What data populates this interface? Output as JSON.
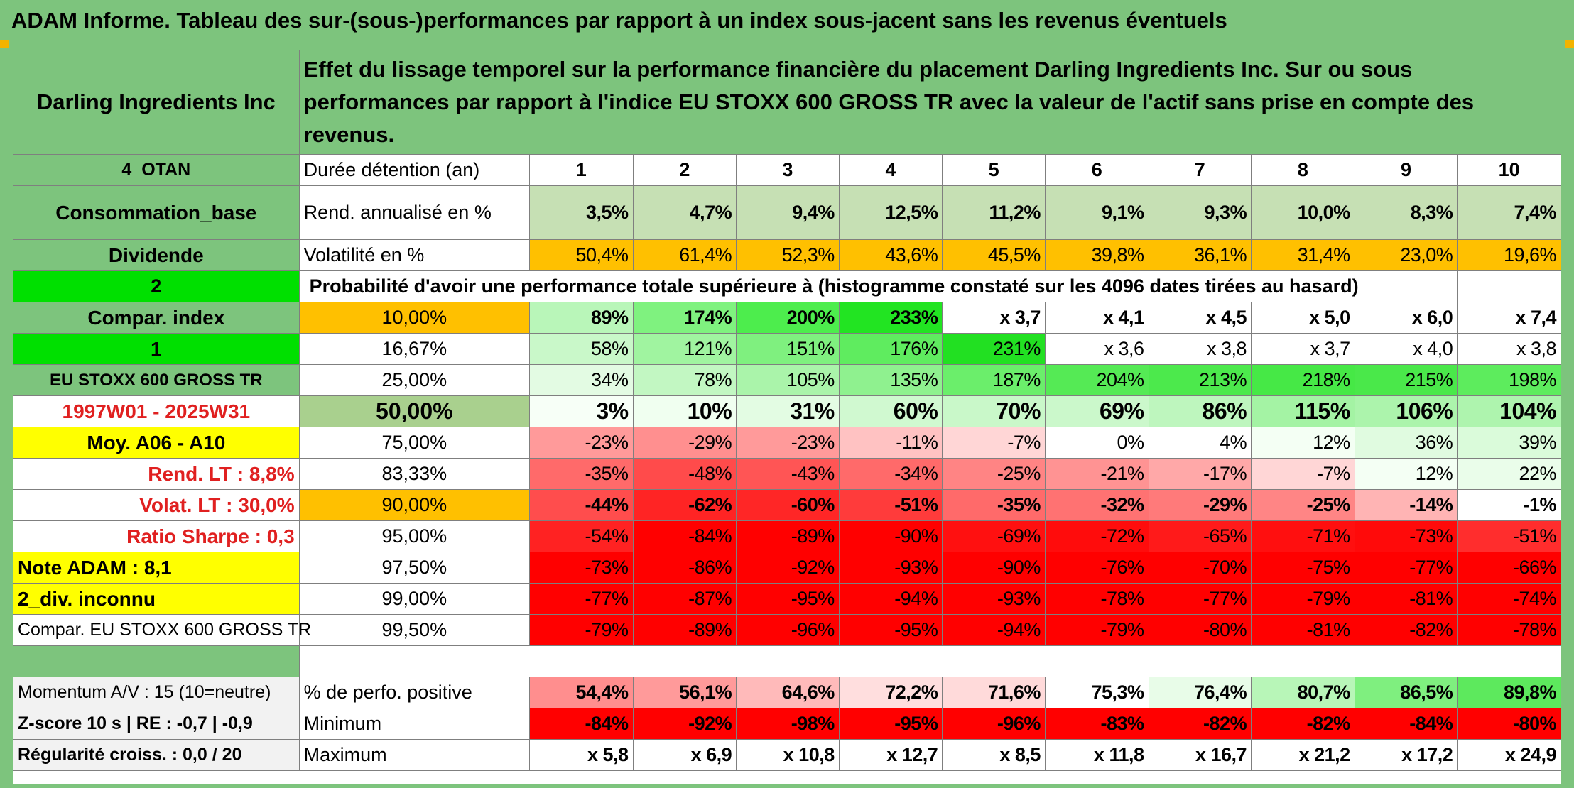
{
  "title": "ADAM Informe. Tableau des sur-(sous-)performances par rapport à un index sous-jacent sans les revenus éventuels",
  "company": "Darling Ingredients Inc",
  "description": "Effet du lissage temporel sur la performance financière du placement Darling Ingredients Inc. Sur ou sous performances par rapport à l'indice EU STOXX 600 GROSS TR avec la valeur de l'actif sans prise en compte des revenus.",
  "left_labels": {
    "l0": "4_OTAN",
    "l1": "Consommation_base",
    "l2": "Dividende",
    "l3": "2",
    "l4": "Compar. index",
    "l5": "1",
    "l6": "EU STOXX 600 GROSS TR",
    "l7": "1997W01 - 2025W31",
    "l8": "Moy. A06 - A10",
    "l9": "Rend. LT :   8,8%",
    "l10": "Volat. LT :   30,0%",
    "l11": "Ratio Sharpe :    0,3",
    "l12": "Note ADAM : 8,1",
    "l13": "2_div. inconnu",
    "l14": "Compar. EU STOXX 600 GROSS TR",
    "l15": "Momentum A/V : 15 (10=neutre)",
    "l16": "Z-score 10 s | RE : -0,7 | -0,9",
    "l17": "Régularité croiss. : 0,0 / 20"
  },
  "row_labels": {
    "holding": "Durée détention (an)",
    "rend": "Rend. annualisé en %",
    "vol": "Volatilité en %",
    "prob": "Probabilité d'avoir une performance totale supérieure à (histogramme constaté sur les 4096 dates tirées au hasard)",
    "pos": "% de perfo. positive",
    "min": "Minimum",
    "max": "Maximum"
  },
  "years": [
    "1",
    "2",
    "3",
    "4",
    "5",
    "6",
    "7",
    "8",
    "9",
    "10"
  ],
  "rend": [
    "3,5%",
    "4,7%",
    "9,4%",
    "12,5%",
    "11,2%",
    "9,1%",
    "9,3%",
    "10,0%",
    "8,3%",
    "7,4%"
  ],
  "vol": [
    "50,4%",
    "61,4%",
    "52,3%",
    "43,6%",
    "45,5%",
    "39,8%",
    "36,1%",
    "31,4%",
    "23,0%",
    "19,6%"
  ],
  "percentiles": [
    "10,00%",
    "16,67%",
    "25,00%",
    "50,00%",
    "75,00%",
    "83,33%",
    "90,00%",
    "95,00%",
    "97,50%",
    "99,00%",
    "99,50%"
  ],
  "perf": [
    [
      "89%",
      "174%",
      "200%",
      "233%",
      "x 3,7",
      "x 4,1",
      "x 4,5",
      "x 5,0",
      "x 6,0",
      "x 7,4"
    ],
    [
      "58%",
      "121%",
      "151%",
      "176%",
      "231%",
      "x 3,6",
      "x 3,8",
      "x 3,7",
      "x 4,0",
      "x 3,8"
    ],
    [
      "34%",
      "78%",
      "105%",
      "135%",
      "187%",
      "204%",
      "213%",
      "218%",
      "215%",
      "198%"
    ],
    [
      "3%",
      "10%",
      "31%",
      "60%",
      "70%",
      "69%",
      "86%",
      "115%",
      "106%",
      "104%"
    ],
    [
      "-23%",
      "-29%",
      "-23%",
      "-11%",
      "-7%",
      "0%",
      "4%",
      "12%",
      "36%",
      "39%"
    ],
    [
      "-35%",
      "-48%",
      "-43%",
      "-34%",
      "-25%",
      "-21%",
      "-17%",
      "-7%",
      "12%",
      "22%"
    ],
    [
      "-44%",
      "-62%",
      "-60%",
      "-51%",
      "-35%",
      "-32%",
      "-29%",
      "-25%",
      "-14%",
      "-1%"
    ],
    [
      "-54%",
      "-84%",
      "-89%",
      "-90%",
      "-69%",
      "-72%",
      "-65%",
      "-71%",
      "-73%",
      "-51%"
    ],
    [
      "-73%",
      "-86%",
      "-92%",
      "-93%",
      "-90%",
      "-76%",
      "-70%",
      "-75%",
      "-77%",
      "-66%"
    ],
    [
      "-77%",
      "-87%",
      "-95%",
      "-94%",
      "-93%",
      "-78%",
      "-77%",
      "-79%",
      "-81%",
      "-74%"
    ],
    [
      "-79%",
      "-89%",
      "-96%",
      "-95%",
      "-94%",
      "-79%",
      "-80%",
      "-81%",
      "-82%",
      "-78%"
    ]
  ],
  "pos": [
    "54,4%",
    "56,1%",
    "64,6%",
    "72,2%",
    "71,6%",
    "75,3%",
    "76,4%",
    "80,7%",
    "86,5%",
    "89,8%"
  ],
  "min": [
    "-84%",
    "-92%",
    "-98%",
    "-95%",
    "-96%",
    "-83%",
    "-82%",
    "-82%",
    "-84%",
    "-80%"
  ],
  "max": [
    "x 5,8",
    "x 6,9",
    "x 10,8",
    "x 12,7",
    "x 8,5",
    "x 11,8",
    "x 16,7",
    "x 21,2",
    "x 17,2",
    "x 24,9"
  ],
  "colors": {
    "title_green": "#7dc47d",
    "header_green": "#7dc47d",
    "bright_green": "#00e000",
    "orange": "#ffc000",
    "yellow": "#ffff00",
    "red": "#ff0000",
    "label_red": "#e02020"
  }
}
